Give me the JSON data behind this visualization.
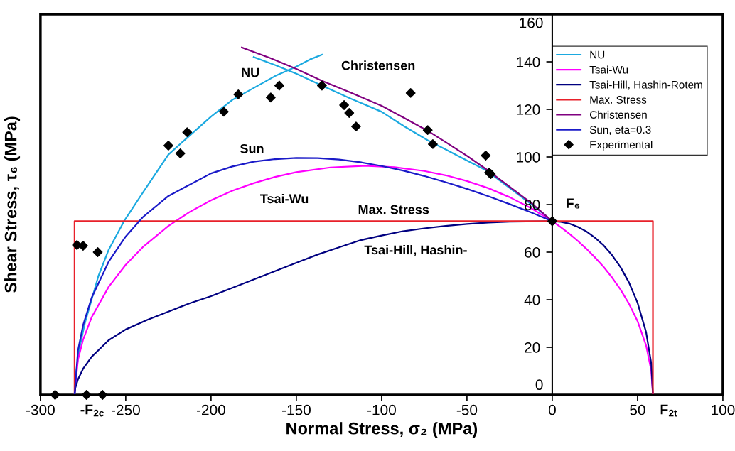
{
  "chart_data": {
    "type": "line",
    "xlabel": "Normal Stress, σ₂ (MPa)",
    "ylabel": "Shear Stress, τ₆ (MPa)",
    "xlim": [
      -300,
      100
    ],
    "ylim": [
      0,
      160
    ],
    "xticks": [
      -300,
      -250,
      -200,
      -150,
      -100,
      -50,
      0,
      50,
      100
    ],
    "yticks": [
      0,
      20,
      40,
      60,
      80,
      100,
      120,
      140,
      160
    ],
    "grid": false,
    "legend": "top right",
    "series": [
      {
        "name": "NU",
        "color": "#1ba9e0",
        "marker": "none",
        "x": [
          -280,
          -279,
          -277,
          -274,
          -270,
          -266,
          -260,
          -251,
          -240,
          -225,
          -212.5,
          -200,
          -187.5,
          -175,
          -162.5,
          -150,
          -142,
          -135,
          null,
          -175,
          -162,
          -150,
          -135,
          -118,
          -100,
          -87,
          -73,
          -62,
          -50,
          -39,
          -25,
          -12,
          0
        ],
        "values": [
          0,
          10,
          20,
          30,
          40,
          50,
          61,
          73,
          85,
          101,
          109,
          117,
          124,
          129,
          134,
          138,
          141,
          143,
          null,
          142,
          138.5,
          135,
          130,
          124.5,
          119,
          113,
          107,
          103,
          98.5,
          94.5,
          87,
          80,
          73
        ]
      },
      {
        "name": "Tsai-Wu",
        "color": "#ff00ff",
        "marker": "none",
        "x": [
          -280,
          -278,
          -275,
          -270,
          -260,
          -250,
          -240,
          -225,
          -212.5,
          -200,
          -187.5,
          -175,
          -162.5,
          -150,
          -130,
          -110,
          -92.5,
          -75,
          -62.5,
          -50,
          -37.5,
          -25,
          -12.5,
          0,
          5,
          10,
          15,
          20,
          25,
          30,
          35,
          40,
          45,
          50,
          55,
          58,
          59
        ],
        "values": [
          0,
          14.8,
          23.2,
          32.6,
          45.4,
          54.7,
          62.1,
          71.0,
          76.9,
          81.8,
          85.8,
          89.0,
          91.6,
          93.6,
          95.6,
          96.3,
          95.7,
          94.1,
          92.3,
          89.9,
          86.9,
          83.1,
          78.5,
          73,
          70.5,
          67.7,
          64.7,
          61.4,
          57.8,
          53.9,
          49.4,
          44.3,
          38.3,
          31.0,
          20.8,
          10.3,
          0
        ]
      },
      {
        "name": "Tsai-Hill, Hashin-Rotem",
        "color": "#000080",
        "marker": "none",
        "x": [
          -280,
          -279.5,
          -278,
          -275,
          -270,
          -265,
          -260,
          -250,
          -237.5,
          -225,
          -212.5,
          -200,
          -187.5,
          -175,
          -162.5,
          -150,
          -137.5,
          -125,
          -112.5,
          -100,
          -87.5,
          -75,
          -62.5,
          -50,
          -37.5,
          -25,
          0,
          5,
          10,
          15,
          20,
          25,
          30,
          35,
          40,
          45,
          50,
          55,
          58,
          59
        ],
        "values": [
          0,
          3,
          6.5,
          11,
          16,
          19.5,
          23,
          27.5,
          31.5,
          35,
          38.5,
          41.5,
          45,
          48.5,
          52,
          55.5,
          59,
          62,
          65,
          67,
          68.8,
          70,
          71,
          71.8,
          72.4,
          72.8,
          73,
          72.7,
          72,
          70.6,
          68.7,
          66.1,
          62.9,
          58.8,
          53.7,
          47.2,
          38.7,
          26.4,
          13.4,
          0
        ]
      },
      {
        "name": "Max. Stress",
        "color": "#e8202a",
        "marker": "none",
        "x": [
          -280,
          -280,
          59,
          59
        ],
        "values": [
          0,
          73,
          73,
          0
        ]
      },
      {
        "name": "Christensen",
        "color": "#800080",
        "marker": "none",
        "x": [
          -182,
          -165,
          -150,
          -135,
          -118,
          -100,
          -87,
          -73,
          -62,
          -50,
          -39,
          -25,
          -12,
          0
        ],
        "values": [
          146,
          141.5,
          137,
          132,
          127,
          121.5,
          116.5,
          111,
          106,
          100.5,
          95,
          87.5,
          80.5,
          73
        ]
      },
      {
        "name": "Sun, eta=0.3",
        "color": "#1a1ac8",
        "marker": "none",
        "x": [
          -280,
          -278,
          -275,
          -270,
          -260,
          -250,
          -240,
          -225,
          -200,
          -187.5,
          -175,
          -162.5,
          -150,
          -137.5,
          -125,
          -112.5,
          -100,
          -87.5,
          -75,
          -62.5,
          -50,
          -37.5,
          -25,
          -12.5,
          0
        ],
        "values": [
          0,
          18.7,
          29.3,
          40.8,
          56,
          66.6,
          74.7,
          83.6,
          93.1,
          96.0,
          98,
          99.1,
          99.6,
          99.5,
          98.9,
          97.8,
          96.2,
          94.3,
          92,
          89.4,
          86.6,
          83.5,
          80.2,
          76.7,
          73
        ]
      },
      {
        "name": "Experimental",
        "type": "scatter",
        "color": "#000000",
        "marker": "diamond",
        "x": [
          -291.4,
          -278.6,
          -275,
          -266.4,
          -273,
          -263.6,
          -225,
          -218,
          -214,
          -192.5,
          -184,
          -165,
          -160,
          -135,
          -122,
          -119,
          -115,
          -83,
          -73,
          -70,
          -39,
          -37,
          -36,
          0
        ],
        "values": [
          0,
          63,
          62.7,
          60,
          0,
          0,
          104.8,
          101.5,
          110.4,
          119,
          126.3,
          125,
          130,
          130,
          121.8,
          118.5,
          112.8,
          126.9,
          111.3,
          105.4,
          100.6,
          93.4,
          92.8,
          73
        ]
      }
    ],
    "annotations": [
      "NU",
      "Christensen",
      "Sun",
      "Tsai-Wu",
      "Max. Stress",
      "Tsai-Hill, Hashin-",
      {
        "text": "F₆",
        "x": 0,
        "y": 73
      },
      {
        "text": "-F$_{2c}$",
        "x": -280,
        "y": 0
      },
      {
        "text": "F$_{2t}$",
        "x": 59,
        "y": 0
      }
    ]
  }
}
